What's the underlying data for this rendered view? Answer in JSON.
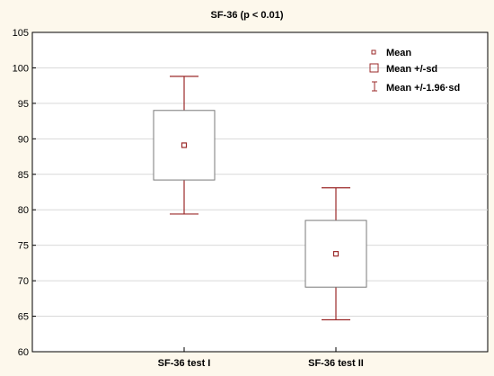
{
  "chart_data": {
    "type": "box",
    "title": "SF-36 (p < 0.01)",
    "categories": [
      "SF-36 test I",
      "SF-36 test II"
    ],
    "series": [
      {
        "category": "SF-36 test I",
        "mean": 89.1,
        "mean_minus_sd": 84.2,
        "mean_plus_sd": 94.0,
        "mean_minus_1_96_sd": 79.4,
        "mean_plus_1_96_sd": 98.8
      },
      {
        "category": "SF-36 test II",
        "mean": 73.8,
        "mean_minus_sd": 69.1,
        "mean_plus_sd": 78.5,
        "mean_minus_1_96_sd": 64.5,
        "mean_plus_1_96_sd": 83.1
      }
    ],
    "ylim": [
      60,
      105
    ],
    "yticks": [
      "60",
      "65",
      "70",
      "75",
      "80",
      "85",
      "90",
      "95",
      "100",
      "105"
    ],
    "grid": true,
    "legend_position": "top-right",
    "legend": [
      {
        "symbol": "mean-marker",
        "label": "Mean"
      },
      {
        "symbol": "box",
        "label": "Mean +/-sd"
      },
      {
        "symbol": "whisker",
        "label": "Mean +/-1.96·sd"
      }
    ],
    "colors": {
      "accent": "#9b2a2a",
      "box_edge": "#7a7a7a",
      "background": "#fdf8ec",
      "plot_bg": "#ffffff",
      "grid": "#d9d9d9"
    }
  }
}
